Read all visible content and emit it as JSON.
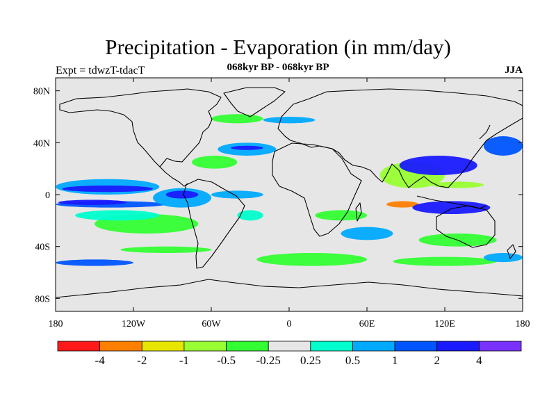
{
  "title": "Precipitation - Evaporation (in mm/day)",
  "subtitle": "068kyr BP - 068kyr BP",
  "left_label": "Expt = tdwzT-tdacT",
  "right_label": "JJA",
  "colors": {
    "background_field": "#e6e6e6",
    "land_outline": "#000000",
    "palette": [
      "#ff1a1a",
      "#ff8000",
      "#e6e600",
      "#99ff33",
      "#33ff33",
      "#e6e6e6",
      "#00ffcc",
      "#00aaff",
      "#0055ff",
      "#1a1aff",
      "#7a33ff"
    ]
  },
  "chart_data": {
    "type": "heatmap",
    "projection": "cylindrical-equidistant",
    "variable": "Precipitation - Evaporation (in mm/day)",
    "xlim": [
      -180,
      180
    ],
    "ylim": [
      -90,
      90
    ],
    "x_ticks": [
      {
        "value": -180,
        "label": "180"
      },
      {
        "value": -120,
        "label": "120W"
      },
      {
        "value": -60,
        "label": "60W"
      },
      {
        "value": 0,
        "label": "0"
      },
      {
        "value": 60,
        "label": "60E"
      },
      {
        "value": 120,
        "label": "120E"
      },
      {
        "value": 180,
        "label": "180"
      }
    ],
    "y_ticks": [
      {
        "value": 80,
        "label": "80N"
      },
      {
        "value": 40,
        "label": "40N"
      },
      {
        "value": 0,
        "label": "0"
      },
      {
        "value": -40,
        "label": "40S"
      },
      {
        "value": -80,
        "label": "80S"
      }
    ],
    "colorbar": {
      "levels": [
        "-4",
        "-2",
        "-1",
        "-0.5",
        "-0.25",
        "0.25",
        "0.5",
        "1",
        "2",
        "4"
      ],
      "colors": [
        "#ff1a1a",
        "#ff8000",
        "#e6e600",
        "#99ff33",
        "#33ff33",
        "#e6e6e6",
        "#00ffcc",
        "#00aaff",
        "#0055ff",
        "#1a1aff",
        "#7a33ff"
      ]
    },
    "features": [
      {
        "lon": [
          -180,
          -100
        ],
        "lat": [
          0,
          12
        ],
        "class": 7
      },
      {
        "lon": [
          -175,
          -105
        ],
        "lat": [
          2,
          7
        ],
        "class": 9
      },
      {
        "lon": [
          -180,
          -95
        ],
        "lat": [
          -10,
          -5
        ],
        "class": 8
      },
      {
        "lon": [
          -178,
          -125
        ],
        "lat": [
          -4,
          -8
        ],
        "class": 9
      },
      {
        "lon": [
          -150,
          -70
        ],
        "lat": [
          -30,
          -15
        ],
        "class": 4
      },
      {
        "lon": [
          -165,
          -100
        ],
        "lat": [
          -20,
          -12
        ],
        "class": 6
      },
      {
        "lon": [
          -105,
          -60
        ],
        "lat": [
          -10,
          5
        ],
        "class": 7
      },
      {
        "lon": [
          -95,
          -70
        ],
        "lat": [
          -3,
          3
        ],
        "class": 9
      },
      {
        "lon": [
          -60,
          -20
        ],
        "lat": [
          -3,
          3
        ],
        "class": 7
      },
      {
        "lon": [
          -40,
          -20
        ],
        "lat": [
          -20,
          -12
        ],
        "class": 6
      },
      {
        "lon": [
          -55,
          -10
        ],
        "lat": [
          30,
          40
        ],
        "class": 7
      },
      {
        "lon": [
          -45,
          -20
        ],
        "lat": [
          35,
          37
        ],
        "class": 9
      },
      {
        "lon": [
          -75,
          -40
        ],
        "lat": [
          20,
          30
        ],
        "class": 4
      },
      {
        "lon": [
          -60,
          -20
        ],
        "lat": [
          55,
          62
        ],
        "class": 4
      },
      {
        "lon": [
          -20,
          20
        ],
        "lat": [
          55,
          60
        ],
        "class": 7
      },
      {
        "lon": [
          20,
          60
        ],
        "lat": [
          -20,
          -12
        ],
        "class": 4
      },
      {
        "lon": [
          75,
          100
        ],
        "lat": [
          -10,
          -5
        ],
        "class": 1
      },
      {
        "lon": [
          70,
          120
        ],
        "lat": [
          5,
          25
        ],
        "class": 3
      },
      {
        "lon": [
          85,
          145
        ],
        "lat": [
          15,
          30
        ],
        "class": 9
      },
      {
        "lon": [
          110,
          150
        ],
        "lat": [
          5,
          10
        ],
        "class": 3
      },
      {
        "lon": [
          95,
          155
        ],
        "lat": [
          -5,
          -15
        ],
        "class": 9
      },
      {
        "lon": [
          150,
          180
        ],
        "lat": [
          30,
          45
        ],
        "class": 8
      },
      {
        "lon": [
          40,
          80
        ],
        "lat": [
          -35,
          -25
        ],
        "class": 7
      },
      {
        "lon": [
          100,
          160
        ],
        "lat": [
          -40,
          -30
        ],
        "class": 4
      },
      {
        "lon": [
          -180,
          -120
        ],
        "lat": [
          -55,
          -50
        ],
        "class": 8
      },
      {
        "lon": [
          -130,
          -60
        ],
        "lat": [
          -45,
          -40
        ],
        "class": 4
      },
      {
        "lon": [
          -25,
          60
        ],
        "lat": [
          -55,
          -45
        ],
        "class": 4
      },
      {
        "lon": [
          80,
          160
        ],
        "lat": [
          -55,
          -48
        ],
        "class": 4
      },
      {
        "lon": [
          150,
          180
        ],
        "lat": [
          -52,
          -45
        ],
        "class": 7
      }
    ]
  }
}
